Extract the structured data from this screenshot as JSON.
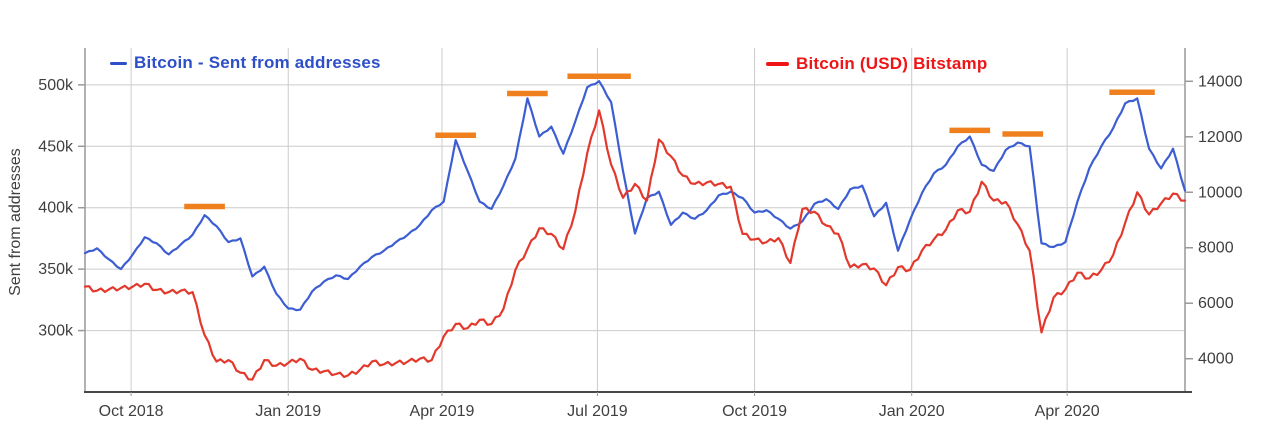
{
  "chart": {
    "legend": {
      "series1": {
        "label": "Bitcoin - Sent from addresses",
        "color": "#2d4fc8"
      },
      "series2": {
        "label": "Bitcoin (USD) Bitstamp",
        "color": "#ed1515"
      }
    },
    "left_axis": {
      "title": "Sent from addresses",
      "ticks": [
        "300k",
        "350k",
        "400k",
        "450k",
        "500k"
      ],
      "values": [
        300,
        350,
        400,
        450,
        500
      ],
      "range": [
        250,
        530
      ]
    },
    "right_axis": {
      "ticks": [
        "4000",
        "6000",
        "8000",
        "10000",
        "12000",
        "14000"
      ],
      "values": [
        4000,
        6000,
        8000,
        10000,
        12000,
        14000
      ],
      "range": [
        2800,
        15200
      ]
    },
    "x_axis": {
      "range": [
        "2018-09-04",
        "2020-06-09"
      ],
      "ticks": [
        {
          "label": "Oct 2018",
          "date": "2018-10-01"
        },
        {
          "label": "Jan 2019",
          "date": "2019-01-01"
        },
        {
          "label": "Apr 2019",
          "date": "2019-04-01"
        },
        {
          "label": "Jul 2019",
          "date": "2019-07-01"
        },
        {
          "label": "Oct 2019",
          "date": "2019-10-01"
        },
        {
          "label": "Jan 2020",
          "date": "2020-01-01"
        },
        {
          "label": "Apr 2020",
          "date": "2020-04-01"
        }
      ]
    },
    "colors": {
      "grid": "#cccccc",
      "axis_side": "#999999",
      "axis_bottom": "#474747",
      "tick_text": "#3f3f3f"
    }
  },
  "chart_data": {
    "type": "line",
    "x": [
      "2018-09-04",
      "2018-09-11",
      "2018-09-18",
      "2018-09-25",
      "2018-10-02",
      "2018-10-09",
      "2018-10-16",
      "2018-10-23",
      "2018-10-30",
      "2018-11-06",
      "2018-11-13",
      "2018-11-20",
      "2018-11-27",
      "2018-12-04",
      "2018-12-11",
      "2018-12-18",
      "2018-12-25",
      "2019-01-01",
      "2019-01-08",
      "2019-01-15",
      "2019-01-22",
      "2019-01-29",
      "2019-02-05",
      "2019-02-12",
      "2019-02-19",
      "2019-02-26",
      "2019-03-05",
      "2019-03-12",
      "2019-03-19",
      "2019-03-26",
      "2019-04-02",
      "2019-04-09",
      "2019-04-16",
      "2019-04-23",
      "2019-04-30",
      "2019-05-07",
      "2019-05-14",
      "2019-05-21",
      "2019-05-28",
      "2019-06-04",
      "2019-06-11",
      "2019-06-18",
      "2019-06-25",
      "2019-07-02",
      "2019-07-09",
      "2019-07-16",
      "2019-07-23",
      "2019-07-30",
      "2019-08-06",
      "2019-08-13",
      "2019-08-20",
      "2019-08-27",
      "2019-09-03",
      "2019-09-10",
      "2019-09-17",
      "2019-09-24",
      "2019-10-01",
      "2019-10-08",
      "2019-10-15",
      "2019-10-22",
      "2019-10-29",
      "2019-11-05",
      "2019-11-12",
      "2019-11-19",
      "2019-11-26",
      "2019-12-03",
      "2019-12-10",
      "2019-12-17",
      "2019-12-24",
      "2019-12-31",
      "2020-01-07",
      "2020-01-14",
      "2020-01-21",
      "2020-01-28",
      "2020-02-04",
      "2020-02-11",
      "2020-02-18",
      "2020-02-25",
      "2020-03-03",
      "2020-03-10",
      "2020-03-17",
      "2020-03-24",
      "2020-03-31",
      "2020-04-07",
      "2020-04-14",
      "2020-04-21",
      "2020-04-28",
      "2020-05-05",
      "2020-05-12",
      "2020-05-19",
      "2020-05-26",
      "2020-06-02",
      "2020-06-09"
    ],
    "series": [
      {
        "name": "Bitcoin - Sent from addresses",
        "axis": "left",
        "unit": "thousand addresses",
        "color": "#3d5ed2",
        "values": [
          363,
          367,
          358,
          350,
          362,
          376,
          371,
          362,
          370,
          378,
          394,
          385,
          372,
          375,
          344,
          352,
          330,
          318,
          317,
          332,
          340,
          345,
          342,
          352,
          360,
          365,
          372,
          378,
          386,
          398,
          405,
          455,
          430,
          405,
          399,
          418,
          440,
          489,
          458,
          466,
          444,
          470,
          498,
          503,
          486,
          430,
          379,
          408,
          413,
          386,
          396,
          391,
          398,
          410,
          413,
          408,
          396,
          398,
          391,
          383,
          389,
          403,
          407,
          399,
          415,
          418,
          393,
          404,
          365,
          390,
          412,
          428,
          435,
          450,
          458,
          435,
          430,
          447,
          453,
          450,
          371,
          368,
          372,
          405,
          432,
          450,
          465,
          485,
          489,
          448,
          432,
          448,
          414
        ]
      },
      {
        "name": "Bitcoin (USD) Bitstamp",
        "axis": "right",
        "unit": "USD",
        "color": "#e3392d",
        "values": [
          6600,
          6450,
          6500,
          6550,
          6600,
          6700,
          6480,
          6400,
          6450,
          6400,
          4850,
          3900,
          3950,
          3500,
          3250,
          3950,
          3750,
          3850,
          4000,
          3600,
          3550,
          3450,
          3400,
          3600,
          3900,
          3800,
          3850,
          3900,
          4000,
          3950,
          4800,
          5250,
          5100,
          5400,
          5250,
          5800,
          7200,
          7950,
          8700,
          8500,
          7950,
          9300,
          11400,
          12950,
          11000,
          9800,
          10300,
          9700,
          11900,
          11300,
          10600,
          10300,
          10350,
          10300,
          10200,
          8500,
          8300,
          8200,
          8350,
          7450,
          9400,
          9300,
          8800,
          8500,
          7300,
          7400,
          7250,
          6650,
          7300,
          7200,
          7900,
          8300,
          8650,
          9350,
          9300,
          10380,
          9700,
          9650,
          8850,
          7900,
          4950,
          6200,
          6500,
          7100,
          6900,
          7200,
          7750,
          8900,
          10000,
          9200,
          9600,
          9950,
          9700
        ]
      }
    ],
    "peak_markers": {
      "color": "#f0801d",
      "axis": "left",
      "items": [
        {
          "date": "2018-11-13",
          "value": 401,
          "width_weeks": 3.4
        },
        {
          "date": "2019-04-09",
          "value": 459,
          "width_weeks": 3.4
        },
        {
          "date": "2019-05-21",
          "value": 493,
          "width_weeks": 3.4
        },
        {
          "date": "2019-07-02",
          "value": 507,
          "width_weeks": 5.3
        },
        {
          "date": "2020-02-04",
          "value": 463,
          "width_weeks": 3.4
        },
        {
          "date": "2020-03-06",
          "value": 460,
          "width_weeks": 3.4
        },
        {
          "date": "2020-05-09",
          "value": 494,
          "width_weeks": 3.8
        }
      ]
    }
  }
}
